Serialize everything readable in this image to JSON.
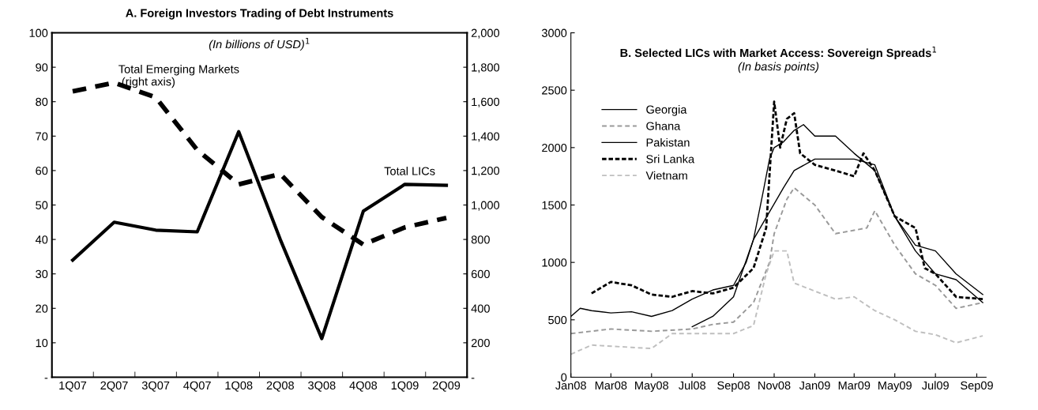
{
  "chart_data": [
    {
      "type": "line",
      "title": "A. Foreign Investors Trading of Debt Instruments",
      "subtitle": "(In billions of USD)$^{1}$",
      "categories": [
        "1Q07",
        "2Q07",
        "3Q07",
        "4Q07",
        "1Q08",
        "2Q08",
        "3Q08",
        "4Q08",
        "1Q09",
        "2Q09"
      ],
      "series": [
        {
          "name": "Total LICs",
          "color": "#000000",
          "line_style": "solid",
          "values": [
            34,
            45,
            42.7,
            42.2,
            71.3,
            40,
            11.2,
            48.2,
            56,
            55.7
          ]
        },
        {
          "name": "Total Emerging Markets\n (right axis)",
          "color": "#000000",
          "line_style": "dashed",
          "axis": "y2",
          "values": [
            1660,
            1710,
            1625,
            1320,
            1120,
            1180,
            930,
            770,
            870,
            925
          ]
        }
      ],
      "ylim": [
        0,
        100
      ],
      "yticks": [
        {
          "value": 0,
          "label": "-"
        },
        10,
        20,
        30,
        40,
        50,
        60,
        70,
        80,
        90,
        100
      ],
      "y2lim": [
        0,
        2000
      ],
      "y2ticks": [
        {
          "value": 0,
          "label": "-"
        },
        {
          "value": 200,
          "label": "200"
        },
        {
          "value": 400,
          "label": "400"
        },
        {
          "value": 600,
          "label": "600"
        },
        {
          "value": 800,
          "label": "800"
        },
        {
          "value": 1000,
          "label": "1,000"
        },
        {
          "value": 1200,
          "label": "1,200"
        },
        {
          "value": 1400,
          "label": "1,400"
        },
        {
          "value": 1600,
          "label": "1,600"
        },
        {
          "value": 1800,
          "label": "1,800"
        },
        {
          "value": 2000,
          "label": "2,000"
        }
      ],
      "grid": false,
      "legend": false
    },
    {
      "type": "line",
      "title": "B. Selected LICs with Market Access: Sovereign Spreads$^{1}$",
      "subtitle": "(In basis points)",
      "series": [
        {
          "name": "Georgia",
          "color": "#000000",
          "line_style": "solid",
          "x": [
            "2008-01-01",
            "2008-01-15",
            "2008-02-01",
            "2008-03-01",
            "2008-04-01",
            "2008-05-01",
            "2008-06-01",
            "2008-07-01",
            "2008-08-01",
            "2008-09-01",
            "2008-09-20",
            "2008-10-01",
            "2008-10-15",
            "2008-10-25",
            "2008-11-01",
            "2008-11-15",
            "2008-12-01",
            "2008-12-15",
            "2009-01-01",
            "2009-02-01",
            "2009-03-01",
            "2009-04-01",
            "2009-05-01",
            "2009-06-01",
            "2009-07-01",
            "2009-08-01",
            "2009-09-10"
          ],
          "values": [
            530,
            600,
            580,
            560,
            570,
            530,
            580,
            680,
            760,
            800,
            1000,
            1200,
            1600,
            1900,
            2000,
            2050,
            2150,
            2200,
            2100,
            2100,
            1950,
            1800,
            1400,
            1150,
            1100,
            900,
            720
          ]
        },
        {
          "name": "Ghana",
          "color": "#999999",
          "line_style": "dashed",
          "x": [
            "2008-01-01",
            "2008-03-01",
            "2008-05-01",
            "2008-07-01",
            "2008-08-01",
            "2008-09-01",
            "2008-10-01",
            "2008-10-25",
            "2008-11-01",
            "2008-11-20",
            "2008-12-01",
            "2009-01-01",
            "2009-02-01",
            "2009-03-01",
            "2009-03-20",
            "2009-04-01",
            "2009-05-01",
            "2009-06-01",
            "2009-07-01",
            "2009-08-01",
            "2009-09-10"
          ],
          "values": [
            380,
            420,
            400,
            420,
            460,
            480,
            650,
            1000,
            1250,
            1550,
            1650,
            1500,
            1250,
            1280,
            1300,
            1450,
            1150,
            900,
            800,
            600,
            650
          ]
        },
        {
          "name": "Pakistan",
          "color": "#000000",
          "line_style": "solid",
          "x": [
            "2008-07-01",
            "2008-08-01",
            "2008-09-01",
            "2008-10-01",
            "2008-11-15",
            "2008-12-01",
            "2009-01-01",
            "2009-03-01",
            "2009-04-01",
            "2009-05-01",
            "2009-06-01",
            "2009-07-01",
            "2009-08-01",
            "2009-09-10"
          ],
          "values": [
            440,
            530,
            700,
            1200,
            1650,
            1800,
            1900,
            1900,
            1850,
            1400,
            1100,
            900,
            850,
            650
          ]
        },
        {
          "name": "Sri Lanka",
          "color": "#000000",
          "line_style": "dotted",
          "x": [
            "2008-02-01",
            "2008-03-01",
            "2008-04-01",
            "2008-05-01",
            "2008-06-01",
            "2008-07-01",
            "2008-08-01",
            "2008-09-01",
            "2008-10-01",
            "2008-10-20",
            "2008-11-01",
            "2008-11-10",
            "2008-11-20",
            "2008-12-01",
            "2008-12-10",
            "2009-01-01",
            "2009-02-01",
            "2009-03-01",
            "2009-03-15",
            "2009-04-01",
            "2009-05-01",
            "2009-06-01",
            "2009-06-15",
            "2009-07-01",
            "2009-08-01",
            "2009-09-10"
          ],
          "values": [
            730,
            830,
            800,
            720,
            700,
            750,
            730,
            780,
            950,
            1300,
            2400,
            2000,
            2250,
            2300,
            1950,
            1850,
            1800,
            1750,
            1950,
            1800,
            1400,
            1300,
            950,
            900,
            700,
            680
          ]
        },
        {
          "name": "Vietnam",
          "color": "#bfbfbf",
          "line_style": "dashed",
          "x": [
            "2008-01-01",
            "2008-02-01",
            "2008-03-01",
            "2008-04-01",
            "2008-05-01",
            "2008-06-01",
            "2008-07-01",
            "2008-08-01",
            "2008-09-01",
            "2008-10-01",
            "2008-10-20",
            "2008-11-01",
            "2008-11-20",
            "2008-12-01",
            "2009-01-01",
            "2009-02-01",
            "2009-03-01",
            "2009-04-01",
            "2009-05-01",
            "2009-06-01",
            "2009-07-01",
            "2009-08-01",
            "2009-09-10"
          ],
          "values": [
            200,
            280,
            270,
            260,
            250,
            380,
            380,
            380,
            380,
            450,
            900,
            1100,
            1100,
            820,
            750,
            680,
            700,
            580,
            500,
            400,
            370,
            300,
            360
          ]
        }
      ],
      "xlim": [
        "2008-01-01",
        "2009-09-15"
      ],
      "xticks": [
        {
          "value": "2008-01-01",
          "label": "Jan08"
        },
        {
          "value": "2008-03-01",
          "label": "Mar08"
        },
        {
          "value": "2008-05-01",
          "label": "May08"
        },
        {
          "value": "2008-07-01",
          "label": "Jul08"
        },
        {
          "value": "2008-09-01",
          "label": "Sep08"
        },
        {
          "value": "2008-11-01",
          "label": "Nov08"
        },
        {
          "value": "2009-01-01",
          "label": "Jan09"
        },
        {
          "value": "2009-03-01",
          "label": "Mar09"
        },
        {
          "value": "2009-05-01",
          "label": "May09"
        },
        {
          "value": "2009-07-01",
          "label": "Jul09"
        },
        {
          "value": "2009-09-01",
          "label": "Sep09"
        }
      ],
      "ylim": [
        0,
        3000
      ],
      "yticks": [
        0,
        500,
        1000,
        1500,
        2000,
        2500,
        3000
      ],
      "grid": false,
      "legend": "upper left"
    }
  ]
}
